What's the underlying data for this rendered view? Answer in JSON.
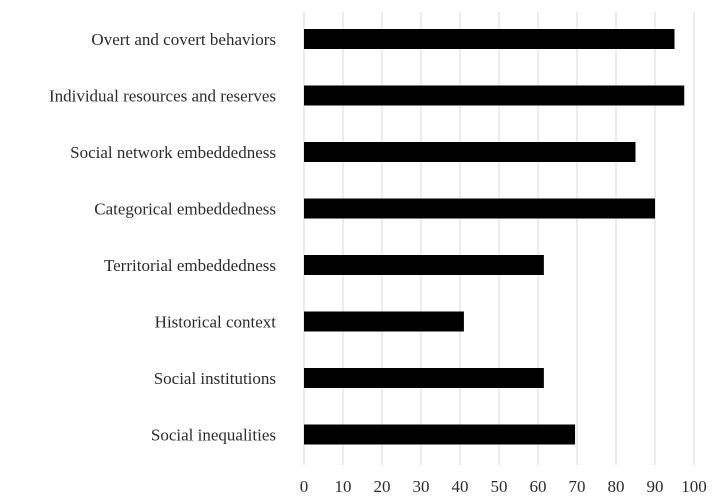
{
  "chart_data": {
    "type": "bar",
    "orientation": "horizontal",
    "categories": [
      "Overt and covert behaviors",
      "Individual resources and reserves",
      "Social network embeddedness",
      "Categorical embeddedness",
      "Territorial embeddedness",
      "Historical context",
      "Social institutions",
      "Social inequalities"
    ],
    "values": [
      95,
      97.5,
      85,
      90,
      61.5,
      41,
      61.5,
      69.5
    ],
    "x_ticks": [
      0,
      10,
      20,
      30,
      40,
      50,
      60,
      70,
      80,
      90,
      100
    ],
    "xlim": [
      0,
      100
    ],
    "grid": "vertical",
    "bar_color": "#000000",
    "grid_color": "#d9d9d9"
  }
}
